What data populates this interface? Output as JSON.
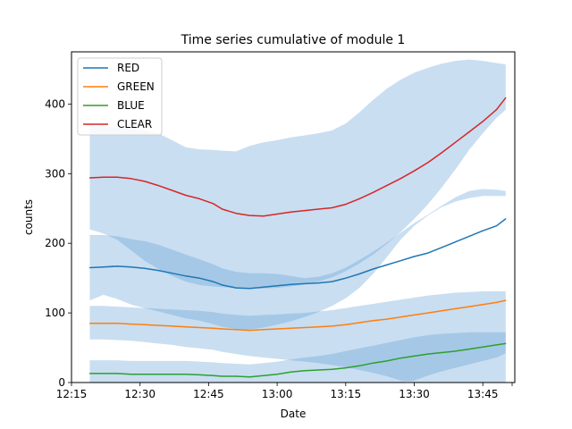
{
  "chart_data": {
    "type": "line",
    "title": "Time series cumulative of module 1",
    "xlabel": "Date",
    "ylabel": "counts",
    "x_ticks": [
      "12:15",
      "12:30",
      "12:45",
      "13:00",
      "13:15",
      "13:30",
      "13:45"
    ],
    "y_ticks": [
      "0",
      "100",
      "200",
      "300",
      "400"
    ],
    "xlim": [
      "12:15",
      "13:52"
    ],
    "ylim": [
      0,
      475
    ],
    "grid": false,
    "legend_position": "top-left",
    "band_color": "#5b9bd5",
    "x": [
      "12:19",
      "12:22",
      "12:25",
      "12:28",
      "12:31",
      "12:34",
      "12:37",
      "12:40",
      "12:43",
      "12:46",
      "12:48",
      "12:51",
      "12:54",
      "12:57",
      "13:00",
      "13:03",
      "13:06",
      "13:09",
      "13:12",
      "13:15",
      "13:18",
      "13:21",
      "13:24",
      "13:27",
      "13:30",
      "13:33",
      "13:36",
      "13:39",
      "13:42",
      "13:45",
      "13:48",
      "13:50"
    ],
    "series": [
      {
        "name": "RED",
        "color": "#1f77b4",
        "values": [
          165,
          166,
          167,
          166,
          164,
          161,
          157,
          153,
          150,
          145,
          140,
          136,
          135,
          137,
          139,
          141,
          142,
          143,
          145,
          150,
          156,
          163,
          169,
          175,
          181,
          186,
          194,
          202,
          210,
          218,
          225,
          235
        ],
        "band_lower": [
          118,
          126,
          120,
          112,
          107,
          102,
          97,
          92,
          89,
          84,
          80,
          77,
          76,
          79,
          83,
          88,
          94,
          101,
          110,
          121,
          136,
          156,
          180,
          205,
          225,
          240,
          252,
          260,
          265,
          268,
          268,
          268
        ],
        "band_upper": [
          212,
          212,
          210,
          206,
          203,
          198,
          191,
          184,
          177,
          170,
          164,
          159,
          157,
          157,
          156,
          153,
          150,
          152,
          157,
          165,
          176,
          188,
          201,
          215,
          229,
          241,
          254,
          266,
          275,
          278,
          277,
          275
        ]
      },
      {
        "name": "GREEN",
        "color": "#ff7f0e",
        "values": [
          85,
          85,
          85,
          84,
          83,
          82,
          81,
          80,
          79,
          78,
          77,
          76,
          75,
          76,
          77,
          78,
          79,
          80,
          81,
          83,
          86,
          89,
          91,
          94,
          97,
          100,
          103,
          106,
          109,
          112,
          115,
          118
        ],
        "band_lower": [
          62,
          62,
          61,
          60,
          58,
          56,
          54,
          51,
          49,
          47,
          44,
          41,
          38,
          36,
          34,
          32,
          30,
          28,
          25,
          22,
          18,
          14,
          9,
          3,
          0,
          0,
          0,
          0,
          0,
          0,
          0,
          0
        ],
        "band_upper": [
          110,
          110,
          109,
          108,
          107,
          106,
          105,
          104,
          103,
          101,
          99,
          97,
          96,
          97,
          98,
          99,
          100,
          102,
          104,
          107,
          110,
          113,
          116,
          119,
          122,
          125,
          127,
          129,
          130,
          131,
          131,
          131
        ]
      },
      {
        "name": "BLUE",
        "color": "#2ca02c",
        "values": [
          13,
          13,
          13,
          12,
          12,
          12,
          12,
          12,
          11,
          10,
          9,
          9,
          8,
          10,
          12,
          15,
          17,
          18,
          19,
          21,
          24,
          28,
          31,
          35,
          38,
          41,
          43,
          45,
          48,
          51,
          54,
          56
        ],
        "band_lower": [
          0,
          0,
          0,
          0,
          0,
          0,
          0,
          0,
          0,
          0,
          0,
          0,
          0,
          0,
          0,
          0,
          0,
          0,
          0,
          0,
          0,
          0,
          0,
          0,
          3,
          10,
          16,
          21,
          26,
          31,
          36,
          42
        ],
        "band_upper": [
          32,
          32,
          32,
          31,
          31,
          31,
          31,
          31,
          30,
          29,
          28,
          27,
          26,
          28,
          30,
          33,
          36,
          38,
          41,
          45,
          49,
          53,
          57,
          61,
          65,
          68,
          70,
          71,
          72,
          72,
          72,
          72
        ]
      },
      {
        "name": "CLEAR",
        "color": "#d62728",
        "values": [
          294,
          295,
          295,
          293,
          289,
          283,
          276,
          269,
          264,
          257,
          249,
          243,
          240,
          239,
          242,
          245,
          247,
          249,
          251,
          256,
          264,
          273,
          283,
          293,
          304,
          316,
          330,
          345,
          360,
          375,
          392,
          409
        ],
        "band_lower": [
          220,
          214,
          205,
          190,
          175,
          163,
          153,
          145,
          140,
          138,
          137,
          136,
          135,
          135,
          136,
          138,
          141,
          145,
          151,
          160,
          171,
          184,
          199,
          216,
          235,
          256,
          280,
          306,
          334,
          358,
          380,
          392
        ],
        "band_upper": [
          370,
          368,
          366,
          364,
          362,
          358,
          348,
          338,
          335,
          334,
          333,
          332,
          340,
          345,
          348,
          352,
          355,
          358,
          362,
          372,
          388,
          406,
          422,
          435,
          445,
          452,
          458,
          462,
          464,
          462,
          459,
          457
        ]
      }
    ]
  }
}
